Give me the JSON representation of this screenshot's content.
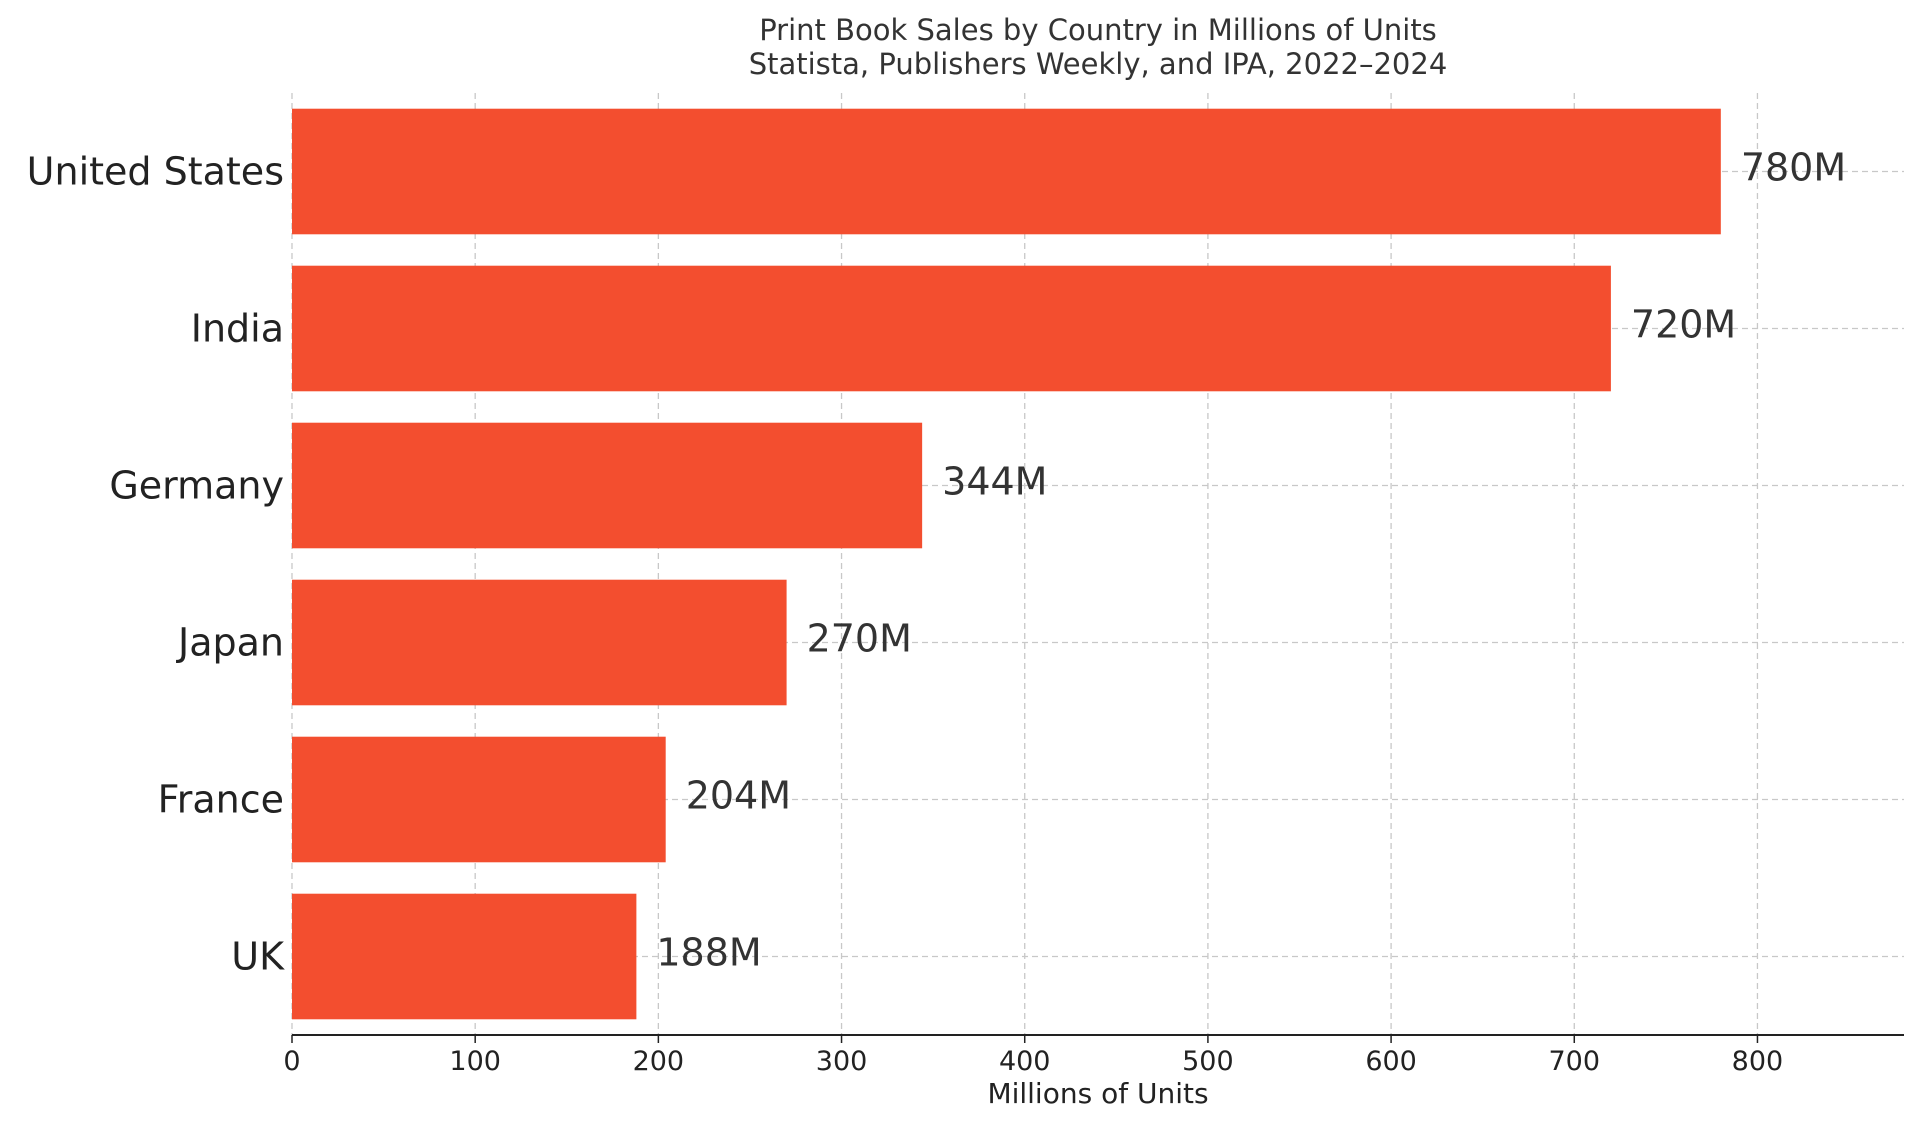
{
  "chart_data": {
    "type": "bar",
    "orientation": "horizontal",
    "title": "Print Book Sales by Country in Millions of Units",
    "subtitle": "Statista, Publishers Weekly, and IPA, 2022–2024",
    "xlabel": "Millions of Units",
    "ylabel": "",
    "categories": [
      "United States",
      "India",
      "Germany",
      "Japan",
      "France",
      "UK"
    ],
    "values": [
      780,
      720,
      344,
      270,
      204,
      188
    ],
    "value_labels": [
      "780M",
      "720M",
      "344M",
      "270M",
      "204M",
      "188M"
    ],
    "xlim": [
      0,
      880
    ],
    "xticks": [
      0,
      100,
      200,
      300,
      400,
      500,
      600,
      700,
      800
    ],
    "xtick_labels": [
      "0",
      "100",
      "200",
      "300",
      "400",
      "500",
      "600",
      "700",
      "800"
    ],
    "grid": true,
    "bar_color": "#f34e2f"
  }
}
